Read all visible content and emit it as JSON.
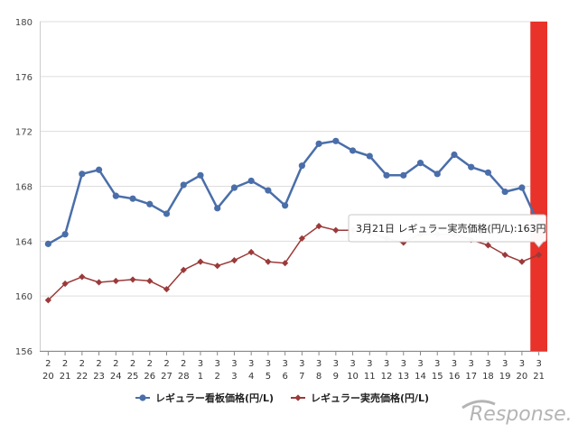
{
  "chart_data": {
    "type": "line",
    "title": "",
    "xlabel": "",
    "ylabel": "",
    "ylim": [
      156,
      180
    ],
    "yticks": [
      "156",
      "160",
      "164",
      "168",
      "172",
      "176",
      "180"
    ],
    "grid": true,
    "legend_position": "bottom",
    "categories": [
      {
        "month": "2",
        "day": "20"
      },
      {
        "month": "2",
        "day": "21"
      },
      {
        "month": "2",
        "day": "22"
      },
      {
        "month": "2",
        "day": "23"
      },
      {
        "month": "2",
        "day": "24"
      },
      {
        "month": "2",
        "day": "25"
      },
      {
        "month": "2",
        "day": "26"
      },
      {
        "month": "2",
        "day": "27"
      },
      {
        "month": "2",
        "day": "28"
      },
      {
        "month": "3",
        "day": "1"
      },
      {
        "month": "3",
        "day": "2"
      },
      {
        "month": "3",
        "day": "3"
      },
      {
        "month": "3",
        "day": "4"
      },
      {
        "month": "3",
        "day": "5"
      },
      {
        "month": "3",
        "day": "6"
      },
      {
        "month": "3",
        "day": "7"
      },
      {
        "month": "3",
        "day": "8"
      },
      {
        "month": "3",
        "day": "9"
      },
      {
        "month": "3",
        "day": "10"
      },
      {
        "month": "3",
        "day": "11"
      },
      {
        "month": "3",
        "day": "12"
      },
      {
        "month": "3",
        "day": "13"
      },
      {
        "month": "3",
        "day": "14"
      },
      {
        "month": "3",
        "day": "15"
      },
      {
        "month": "3",
        "day": "16"
      },
      {
        "month": "3",
        "day": "17"
      },
      {
        "month": "3",
        "day": "18"
      },
      {
        "month": "3",
        "day": "19"
      },
      {
        "month": "3",
        "day": "20"
      },
      {
        "month": "3",
        "day": "21"
      }
    ],
    "series": [
      {
        "name": "レギュラー看板価格(円/L)",
        "color": "#4a6ea9",
        "marker": "circle",
        "values": [
          163.8,
          164.5,
          168.9,
          169.2,
          167.3,
          167.1,
          166.7,
          166.0,
          168.1,
          168.8,
          166.4,
          167.9,
          168.4,
          167.7,
          166.6,
          169.5,
          171.1,
          171.3,
          170.6,
          170.2,
          168.8,
          168.8,
          169.7,
          168.9,
          170.3,
          169.4,
          169.0,
          167.6,
          167.9,
          165.2
        ]
      },
      {
        "name": "レギュラー実売価格(円/L)",
        "color": "#9b3a3a",
        "marker": "diamond",
        "values": [
          159.7,
          160.9,
          161.4,
          161.0,
          161.1,
          161.2,
          161.1,
          160.5,
          161.9,
          162.5,
          162.2,
          162.6,
          163.2,
          162.5,
          162.4,
          164.2,
          165.1,
          164.8,
          164.8,
          164.6,
          164.2,
          163.9,
          164.5,
          164.5,
          164.5,
          164.1,
          163.7,
          163.0,
          162.5,
          163.0
        ]
      }
    ],
    "highlight": {
      "index": 29,
      "color": "#e8322a"
    },
    "tooltip": {
      "text": "3月21日 レギュラー実売価格(円/L):163円",
      "series_index": 1,
      "point_index": 29
    }
  },
  "watermark": {
    "text": "Response."
  }
}
